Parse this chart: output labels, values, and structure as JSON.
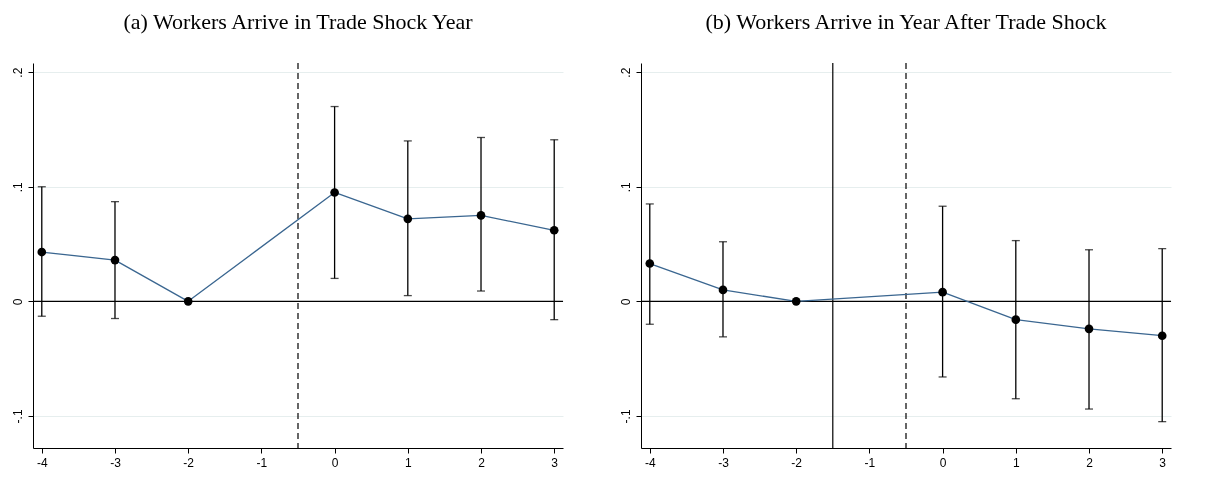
{
  "chart_data": [
    {
      "type": "line",
      "title": "(a) Workers Arrive in Trade Shock Year",
      "x": [
        -4,
        -3,
        -2,
        0,
        1,
        2,
        3
      ],
      "series": [
        {
          "color": "#3a6690",
          "values": [
            0.043,
            0.036,
            0,
            0.095,
            0.072,
            0.075,
            0.062
          ],
          "errors": [
            [
              -0.013,
              0.1
            ],
            [
              -0.015,
              0.087
            ],
            null,
            [
              0.02,
              0.17
            ],
            [
              0.005,
              0.14
            ],
            [
              0.009,
              0.143
            ],
            [
              -0.016,
              0.141
            ]
          ]
        }
      ],
      "xlim": [
        -4.12,
        3.12
      ],
      "xticks": [
        -4,
        -3,
        -2,
        -1,
        0,
        1,
        2,
        3
      ],
      "ylim": [
        -0.128,
        0.208
      ],
      "yticks": [
        {
          "value": -0.1,
          "label": "-.1"
        },
        0,
        {
          "value": 0.1,
          "label": ".1"
        },
        {
          "value": 0.2,
          "label": ".2"
        }
      ],
      "ref_lines": [
        {
          "axis": "y",
          "value": 0,
          "color": "#000000",
          "line_style": "solid"
        },
        {
          "axis": "x",
          "value": -0.5,
          "color": "#000000",
          "line_style": "dashed"
        }
      ],
      "grid": "y",
      "marker": "circle",
      "line_style": "solid"
    },
    {
      "type": "line",
      "title": "(b) Workers Arrive in Year After Trade Shock",
      "x": [
        -4,
        -3,
        -2,
        0,
        1,
        2,
        3
      ],
      "series": [
        {
          "color": "#3a6690",
          "values": [
            0.033,
            0.01,
            0,
            0.008,
            -0.016,
            -0.024,
            -0.03
          ],
          "errors": [
            [
              -0.02,
              0.085
            ],
            [
              -0.031,
              0.052
            ],
            null,
            [
              -0.066,
              0.083
            ],
            [
              -0.085,
              0.053
            ],
            [
              -0.094,
              0.045
            ],
            [
              -0.105,
              0.046
            ]
          ]
        }
      ],
      "xlim": [
        -4.12,
        3.12
      ],
      "xticks": [
        -4,
        -3,
        -2,
        -1,
        0,
        1,
        2,
        3
      ],
      "ylim": [
        -0.128,
        0.208
      ],
      "yticks": [
        {
          "value": -0.1,
          "label": "-.1"
        },
        0,
        {
          "value": 0.1,
          "label": ".1"
        },
        {
          "value": 0.2,
          "label": ".2"
        }
      ],
      "ref_lines": [
        {
          "axis": "y",
          "value": 0,
          "color": "#000000",
          "line_style": "solid"
        },
        {
          "axis": "x",
          "value": -1.5,
          "color": "#000000",
          "line_style": "solid"
        },
        {
          "axis": "x",
          "value": -0.5,
          "color": "#000000",
          "line_style": "dashed"
        }
      ],
      "grid": "y",
      "marker": "circle",
      "line_style": "solid"
    }
  ]
}
